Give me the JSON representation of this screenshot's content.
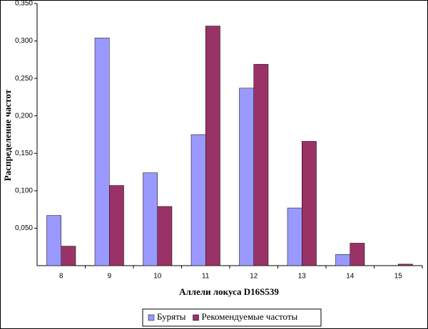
{
  "chart_data": {
    "type": "bar",
    "x_label": "Аллели локуса D16S539",
    "y_label": "Распределение частот",
    "categories": [
      "8",
      "9",
      "10",
      "11",
      "12",
      "13",
      "14",
      "15"
    ],
    "series": [
      {
        "name": "Буряты",
        "color": "#9999ff",
        "values": [
          0.067,
          0.304,
          0.124,
          0.175,
          0.237,
          0.077,
          0.015,
          0
        ]
      },
      {
        "name": "Рекомендуемые частоты",
        "color": "#993366",
        "values": [
          0.026,
          0.107,
          0.079,
          0.32,
          0.269,
          0.166,
          0.03,
          0.002
        ]
      }
    ],
    "ylim": [
      0,
      0.35
    ],
    "yticks": [
      {
        "value": 0.05,
        "label": "0,050"
      },
      {
        "value": 0.1,
        "label": "0,100"
      },
      {
        "value": 0.15,
        "label": "0,150"
      },
      {
        "value": 0.2,
        "label": "0,200"
      },
      {
        "value": 0.25,
        "label": "0,250"
      },
      {
        "value": 0.3,
        "label": "0,300"
      },
      {
        "value": 0.35,
        "label": "0,350"
      }
    ],
    "legend": "bottom"
  }
}
